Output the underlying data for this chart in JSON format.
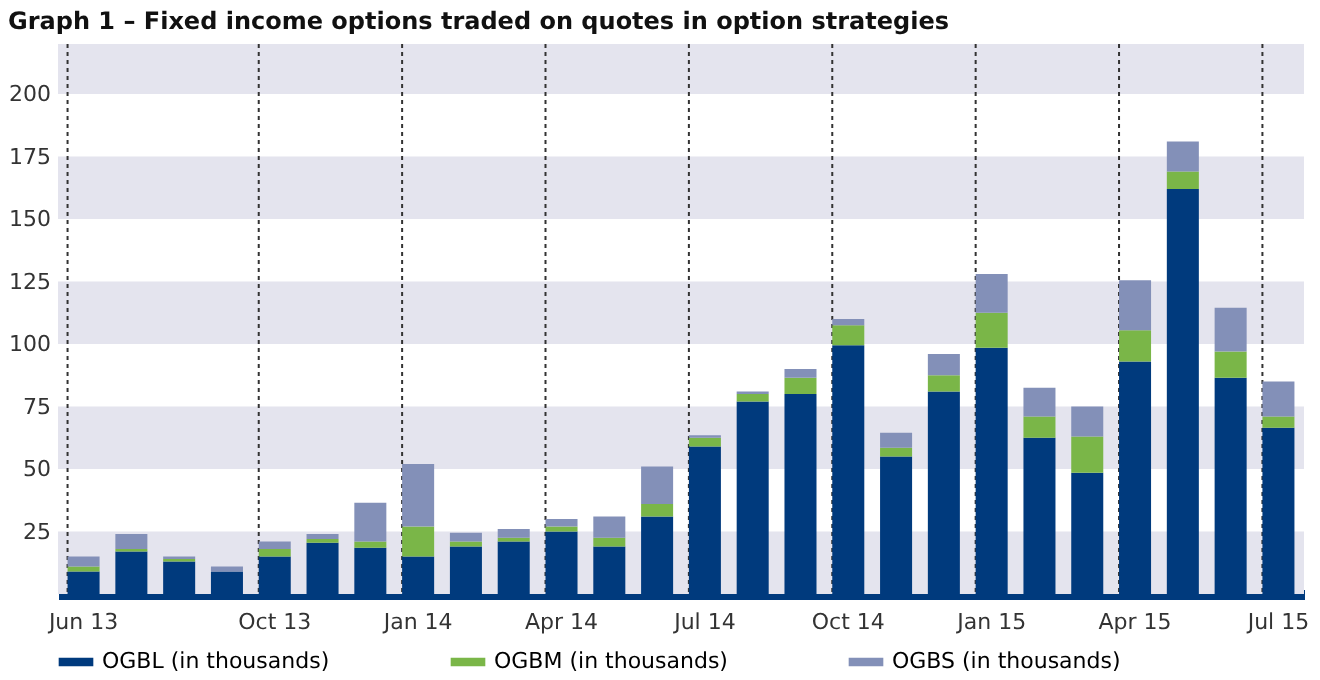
{
  "chart_data": {
    "type": "bar",
    "stacked": true,
    "title": "Graph 1 – Fixed income options traded on quotes in option strategies",
    "categories": [
      "Jun 13",
      null,
      null,
      null,
      "Oct 13",
      null,
      null,
      "Jan 14",
      null,
      null,
      "Apr 14",
      null,
      null,
      "Jul 14",
      null,
      null,
      "Oct 14",
      null,
      null,
      "Jan 15",
      null,
      null,
      "Apr 15",
      null,
      null,
      "Jul 15"
    ],
    "series": [
      {
        "name": "OGBL (in thousands)",
        "color": "#003a7d",
        "values": [
          9,
          17,
          13,
          9,
          15,
          20.5,
          18.5,
          15,
          19,
          21,
          25,
          19,
          31,
          59,
          77,
          80,
          99.5,
          55,
          81,
          98.5,
          62.5,
          48.5,
          93,
          162,
          86.5,
          66.5
        ]
      },
      {
        "name": "OGBM (in thousands)",
        "color": "#7ab648",
        "values": [
          2,
          1,
          1,
          0,
          3,
          1.5,
          2.5,
          12,
          2,
          1.5,
          2,
          3.5,
          5,
          3.5,
          3,
          6.5,
          8,
          3.5,
          6.5,
          14,
          8.5,
          14.5,
          12.5,
          7,
          10.5,
          4.5
        ]
      },
      {
        "name": "OGBS (in thousands)",
        "color": "#8390b8",
        "values": [
          4,
          6,
          1,
          2,
          3,
          2,
          15.5,
          25,
          3.5,
          3.5,
          3,
          8.5,
          15,
          1,
          1,
          3.5,
          2.5,
          6,
          8.5,
          15.5,
          11.5,
          12,
          20,
          12,
          17.5,
          14
        ]
      }
    ],
    "ylim": [
      0,
      220
    ],
    "yticks": [
      25,
      50,
      75,
      100,
      125,
      150,
      175,
      200
    ],
    "bands": [
      {
        "axis": "y",
        "from": 0,
        "to": 25,
        "color": "#e4e4ee"
      },
      {
        "axis": "y",
        "from": 50,
        "to": 75,
        "color": "#e4e4ee"
      },
      {
        "axis": "y",
        "from": 100,
        "to": 125,
        "color": "#e4e4ee"
      },
      {
        "axis": "y",
        "from": 150,
        "to": 175,
        "color": "#e4e4ee"
      },
      {
        "axis": "y",
        "from": 200,
        "to": 220,
        "color": "#e4e4ee"
      }
    ],
    "grid": "x",
    "legend": "bottom"
  }
}
